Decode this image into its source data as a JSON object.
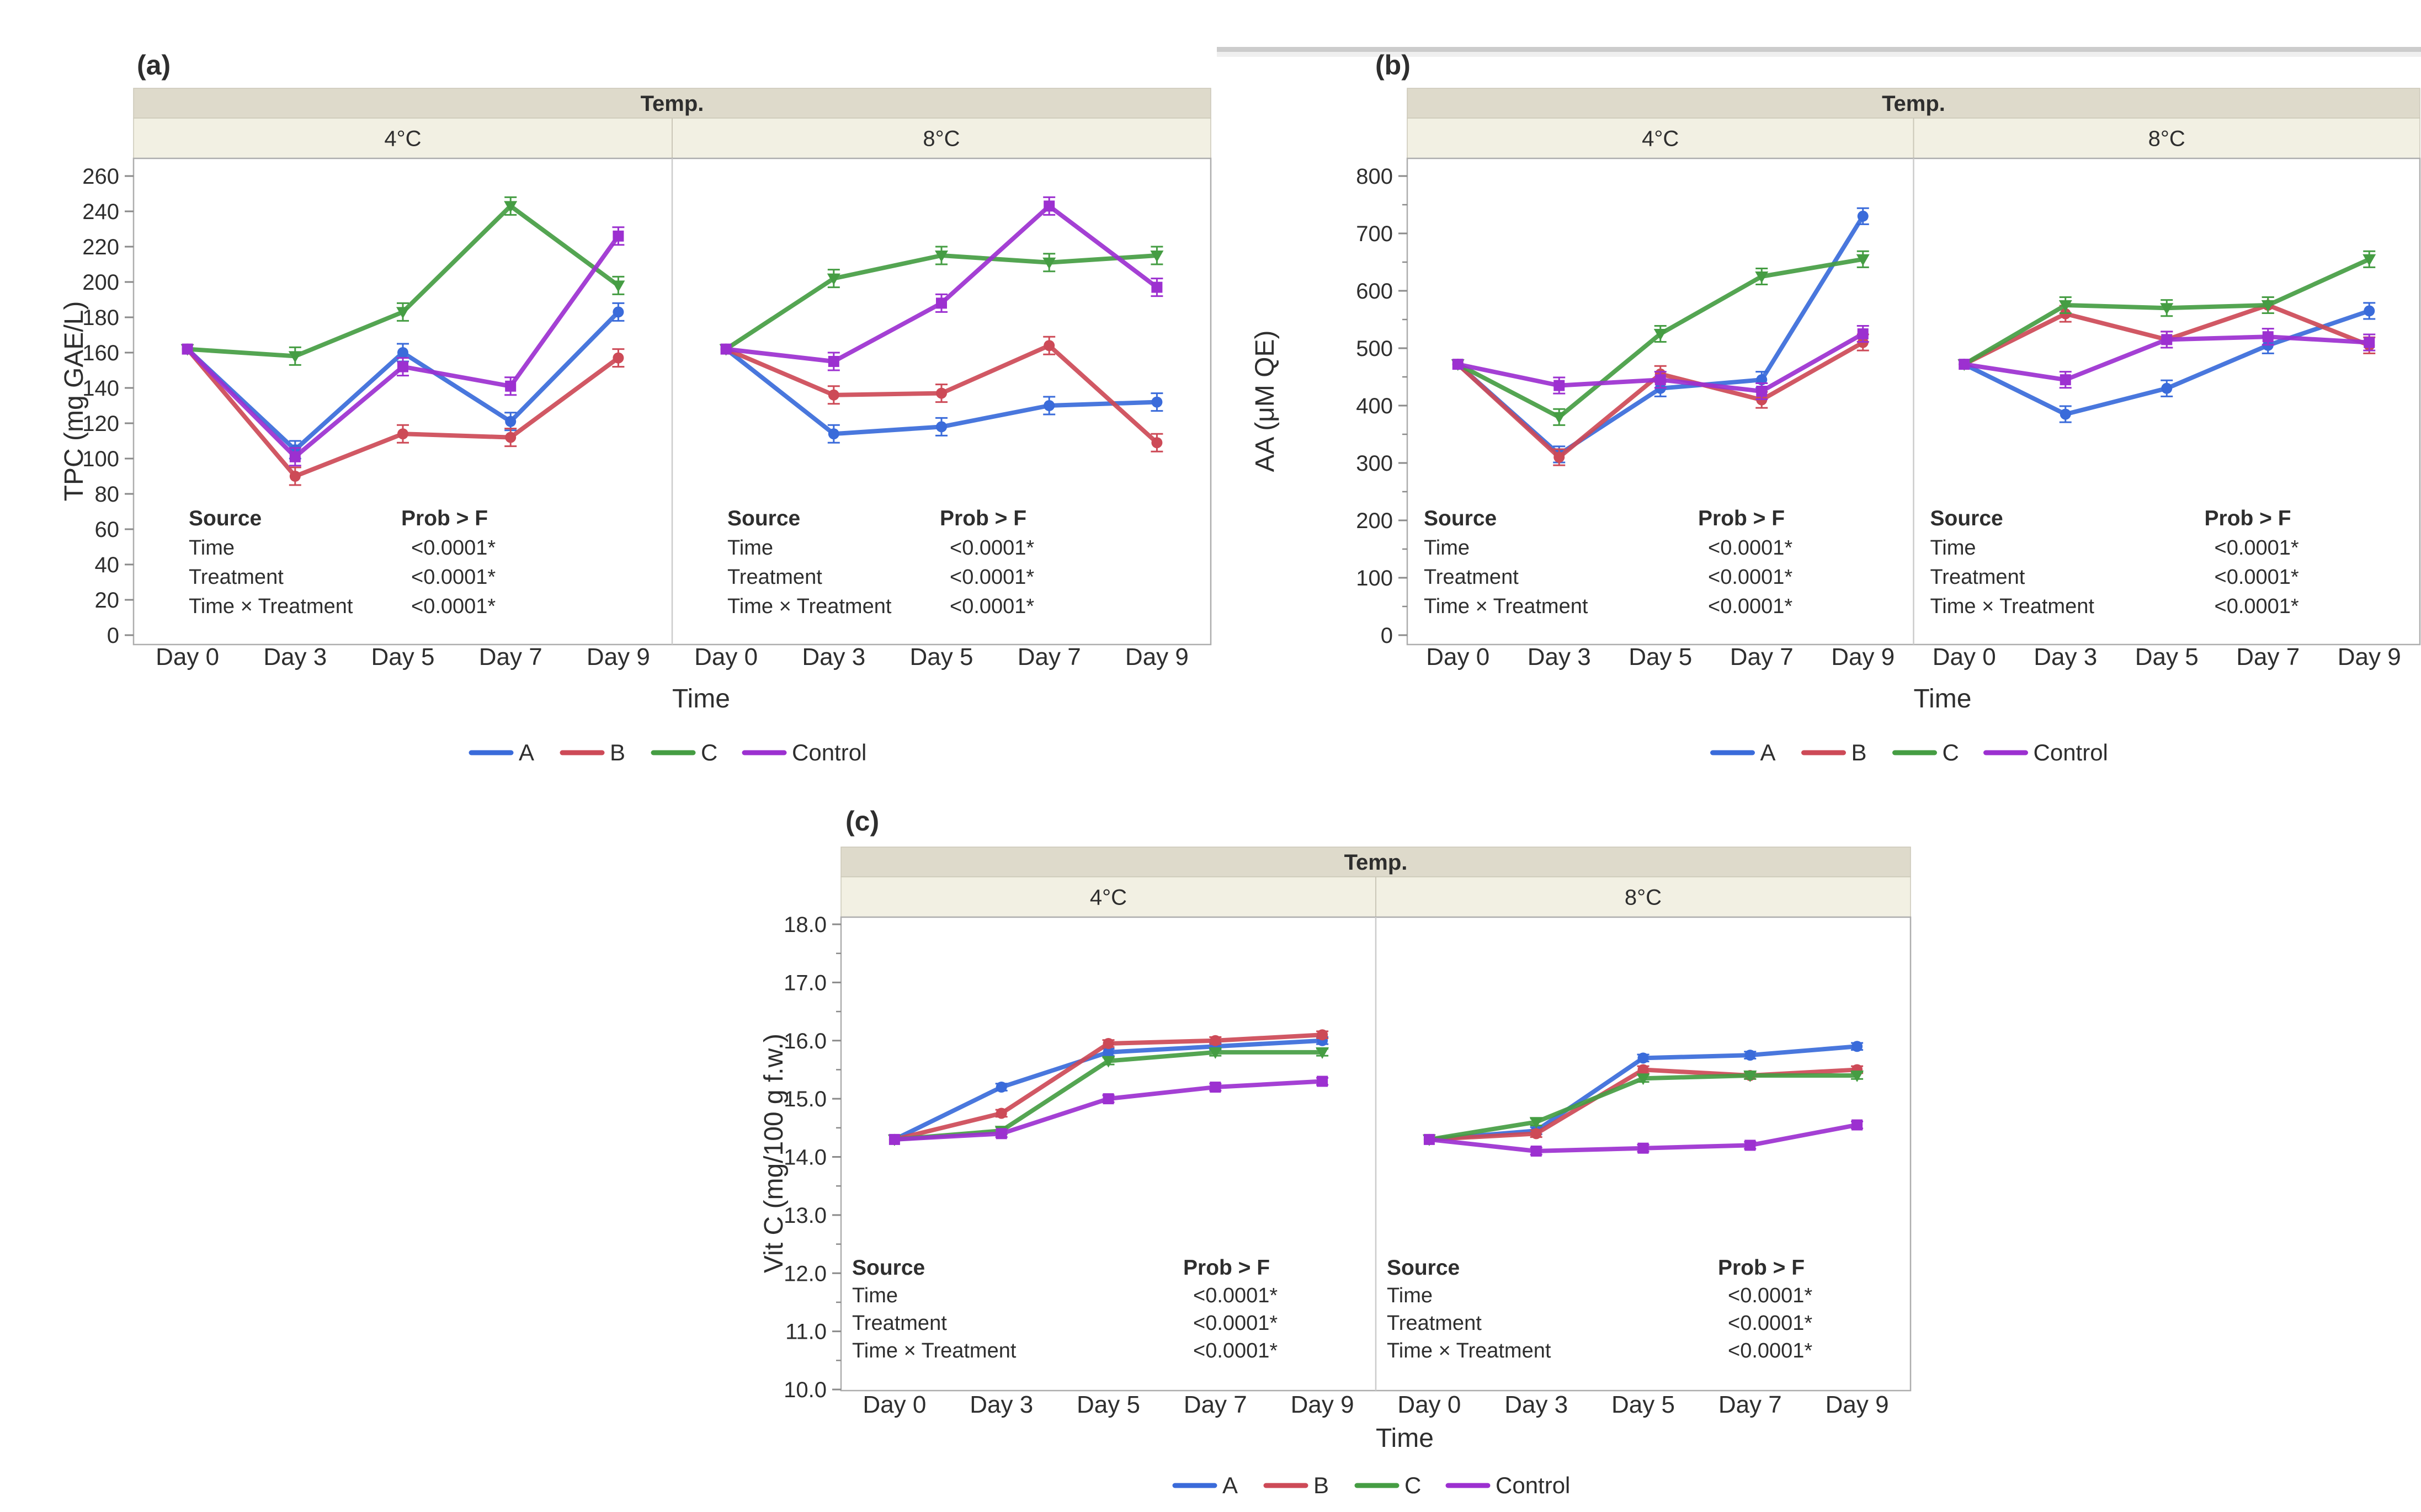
{
  "figure": {
    "background": "#ffffff",
    "top_divider_bar": {
      "present": true,
      "color": "#d4d4d4"
    }
  },
  "colors": {
    "strip_header_bg": "#dedacb",
    "strip_sub_bg": "#f2f0e3",
    "strip_border": "#cbc7b8",
    "plot_border": "#adadad",
    "facet_divider": "#cccccc",
    "tick": "#8a8a8a",
    "axis_text": "#3a3a3a",
    "stats_value_orange": "#e0882c",
    "series_a_blue": "#3a6bda",
    "series_b_red": "#cd4a57",
    "series_c_green": "#459d43",
    "series_control_purple": "#9c30d0"
  },
  "chart_data": [
    {
      "type": "line",
      "panel_label": "(a)",
      "strip_title": "Temp.",
      "facet_labels": [
        "4°C",
        "8°C"
      ],
      "x_categories": [
        "Day 0",
        "Day 3",
        "Day 5",
        "Day 7",
        "Day 9"
      ],
      "xlabel": "Time",
      "ylabel": "TPC (mg GAE/L)",
      "ylim": [
        0,
        260
      ],
      "ytick_step": 20,
      "ytick_decimals": 0,
      "minor_tick_step": 0,
      "error_bar": 5,
      "series": [
        {
          "name": "A",
          "color": "#3a6bda",
          "marker": "circle",
          "values_by_facet": [
            [
              162,
              105,
              160,
              121,
              183
            ],
            [
              162,
              114,
              118,
              130,
              132
            ]
          ]
        },
        {
          "name": "B",
          "color": "#cd4a57",
          "marker": "circle",
          "values_by_facet": [
            [
              162,
              90,
              114,
              112,
              157
            ],
            [
              162,
              136,
              137,
              164,
              109
            ]
          ]
        },
        {
          "name": "C",
          "color": "#459d43",
          "marker": "triangle-down",
          "values_by_facet": [
            [
              162,
              158,
              183,
              243,
              198
            ],
            [
              162,
              202,
              215,
              211,
              215
            ]
          ]
        },
        {
          "name": "Control",
          "color": "#9c30d0",
          "marker": "square",
          "values_by_facet": [
            [
              162,
              101,
              152,
              141,
              226
            ],
            [
              162,
              155,
              188,
              243,
              197
            ]
          ]
        }
      ],
      "stats_table": {
        "source_header": "Source",
        "prob_header": "Prob > F",
        "rows": [
          [
            "Time",
            "<0.0001*"
          ],
          [
            "Treatment",
            "<0.0001*"
          ],
          [
            "Time × Treatment",
            "<0.0001*"
          ]
        ]
      },
      "legend": [
        "A",
        "B",
        "C",
        "Control"
      ]
    },
    {
      "type": "line",
      "panel_label": "(b)",
      "strip_title": "Temp.",
      "facet_labels": [
        "4°C",
        "8°C"
      ],
      "x_categories": [
        "Day 0",
        "Day 3",
        "Day 5",
        "Day 7",
        "Day 9"
      ],
      "xlabel": "Time",
      "ylabel": "AA (μM QE)",
      "ylim": [
        0,
        800
      ],
      "ytick_step": 100,
      "ytick_decimals": 0,
      "minor_tick_step": 50,
      "error_bar": 14,
      "series": [
        {
          "name": "A",
          "color": "#3a6bda",
          "marker": "circle",
          "values_by_facet": [
            [
              472,
              315,
              430,
              445,
              730
            ],
            [
              472,
              385,
              430,
              505,
              565
            ]
          ]
        },
        {
          "name": "B",
          "color": "#cd4a57",
          "marker": "circle",
          "values_by_facet": [
            [
              472,
              310,
              455,
              410,
              510
            ],
            [
              472,
              560,
              515,
              575,
              505
            ]
          ]
        },
        {
          "name": "C",
          "color": "#459d43",
          "marker": "triangle-down",
          "values_by_facet": [
            [
              472,
              380,
              525,
              625,
              655
            ],
            [
              472,
              575,
              570,
              575,
              655
            ]
          ]
        },
        {
          "name": "Control",
          "color": "#9c30d0",
          "marker": "square",
          "values_by_facet": [
            [
              472,
              435,
              445,
              425,
              525
            ],
            [
              472,
              445,
              515,
              520,
              510
            ]
          ]
        }
      ],
      "stats_table": {
        "source_header": "Source",
        "prob_header": "Prob > F",
        "rows": [
          [
            "Time",
            "<0.0001*"
          ],
          [
            "Treatment",
            "<0.0001*"
          ],
          [
            "Time × Treatment",
            "<0.0001*"
          ]
        ]
      },
      "legend": [
        "A",
        "B",
        "C",
        "Control"
      ]
    },
    {
      "type": "line",
      "panel_label": "(c)",
      "strip_title": "Temp.",
      "facet_labels": [
        "4°C",
        "8°C"
      ],
      "x_categories": [
        "Day 0",
        "Day 3",
        "Day 5",
        "Day 7",
        "Day 9"
      ],
      "xlabel": "Time",
      "ylabel": "Vit C (mg/100 g f.w.)",
      "ylim": [
        10.0,
        18.0
      ],
      "ytick_step": 1.0,
      "ytick_decimals": 1,
      "minor_tick_step": 0.5,
      "error_bar": 0.06,
      "series": [
        {
          "name": "A",
          "color": "#3a6bda",
          "marker": "circle",
          "values_by_facet": [
            [
              14.3,
              15.2,
              15.8,
              15.9,
              16.0
            ],
            [
              14.3,
              14.45,
              15.7,
              15.75,
              15.9
            ]
          ]
        },
        {
          "name": "B",
          "color": "#cd4a57",
          "marker": "circle",
          "values_by_facet": [
            [
              14.3,
              14.75,
              15.95,
              16.0,
              16.1
            ],
            [
              14.3,
              14.4,
              15.5,
              15.4,
              15.5
            ]
          ]
        },
        {
          "name": "C",
          "color": "#459d43",
          "marker": "triangle-down",
          "values_by_facet": [
            [
              14.3,
              14.45,
              15.65,
              15.8,
              15.8
            ],
            [
              14.3,
              14.6,
              15.35,
              15.4,
              15.4
            ]
          ]
        },
        {
          "name": "Control",
          "color": "#9c30d0",
          "marker": "square",
          "values_by_facet": [
            [
              14.3,
              14.4,
              15.0,
              15.2,
              15.3
            ],
            [
              14.3,
              14.1,
              14.15,
              14.2,
              14.55
            ]
          ]
        }
      ],
      "stats_table": {
        "source_header": "Source",
        "prob_header": "Prob > F",
        "rows": [
          [
            "Time",
            "<0.0001*"
          ],
          [
            "Treatment",
            "<0.0001*"
          ],
          [
            "Time × Treatment",
            "<0.0001*"
          ]
        ]
      },
      "legend": [
        "A",
        "B",
        "C",
        "Control"
      ]
    }
  ]
}
